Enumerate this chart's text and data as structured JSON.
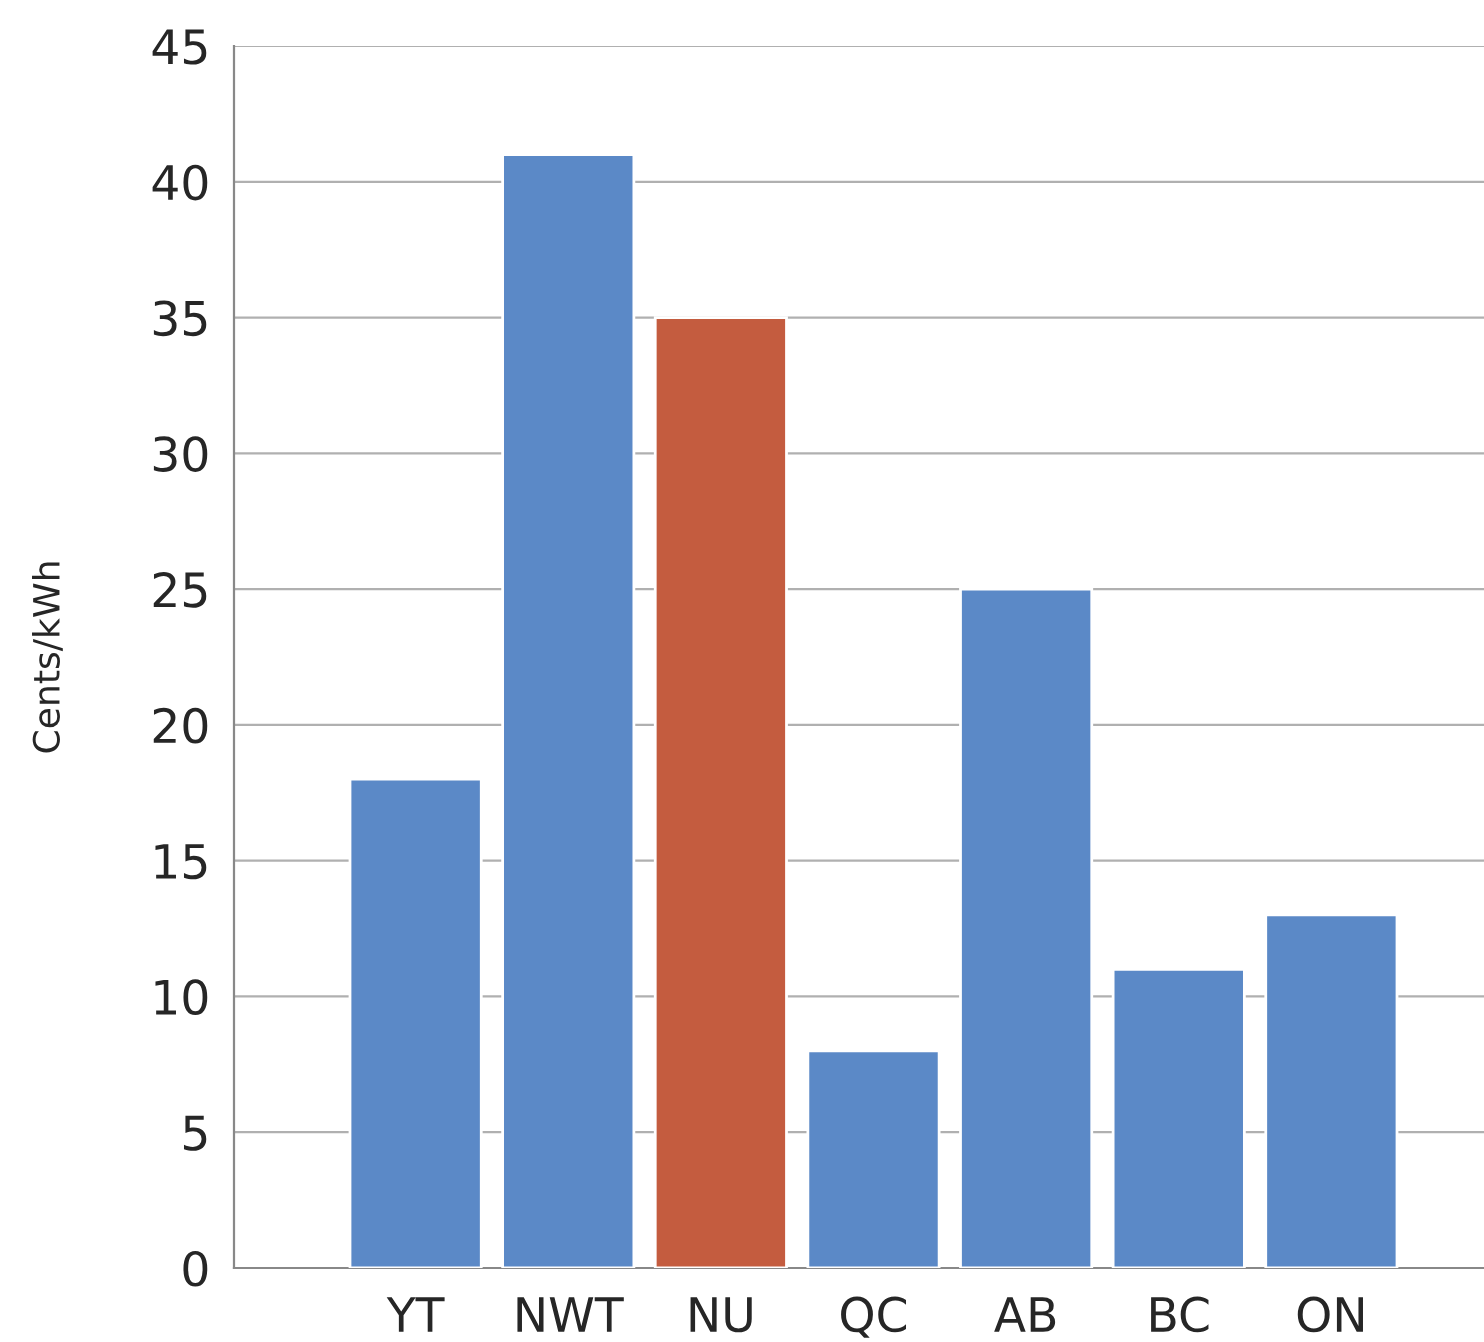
{
  "chart_data": {
    "type": "bar",
    "ylabel": "Cents/kWh",
    "categories": [
      "YT",
      "NWT",
      "NU",
      "QC",
      "AB",
      "BC",
      "ON"
    ],
    "values": [
      18,
      41,
      35,
      8,
      25,
      11,
      13
    ],
    "colors": [
      "#5b89c7",
      "#5b89c7",
      "#c45c3f",
      "#5b89c7",
      "#5b89c7",
      "#5b89c7",
      "#5b89c7"
    ],
    "ylim": [
      0,
      45
    ],
    "yticks": [
      0,
      5,
      10,
      15,
      20,
      25,
      30,
      35,
      40,
      45
    ],
    "grid": "y"
  }
}
